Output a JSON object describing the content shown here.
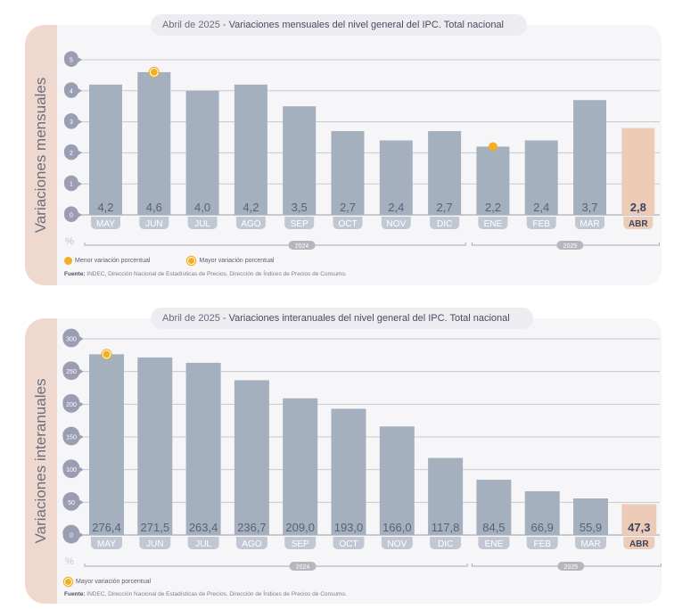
{
  "chart_data": [
    {
      "type": "bar",
      "title_prefix": "Abril de 2025 - ",
      "title": "Variaciones mensuales del nivel general del IPC. Total nacional",
      "ylabel": "Variaciones mensuales",
      "yunit": "%",
      "ylim": [
        0,
        5
      ],
      "yticks": [
        "0",
        "1",
        "2",
        "3",
        "4",
        "5"
      ],
      "categories": [
        "MAY",
        "JUN",
        "JUL",
        "AGO",
        "SEP",
        "OCT",
        "NOV",
        "DIC",
        "ENE",
        "FEB",
        "MAR",
        "ABR"
      ],
      "values": [
        4.2,
        4.6,
        4.0,
        4.2,
        3.5,
        2.7,
        2.4,
        2.7,
        2.2,
        2.4,
        3.7,
        2.8
      ],
      "value_labels": [
        "4,2",
        "4,6",
        "4,0",
        "4,2",
        "3,5",
        "2,7",
        "2,4",
        "2,7",
        "2,2",
        "2,4",
        "3,7",
        "2,8"
      ],
      "highlight_index": 11,
      "markers": [
        {
          "index": 1,
          "kind": "max"
        },
        {
          "index": 8,
          "kind": "min"
        }
      ],
      "year_groups": [
        {
          "label": "2024",
          "from": 0,
          "to": 7
        },
        {
          "label": "2025",
          "from": 8,
          "to": 11
        }
      ],
      "legend": [
        {
          "kind": "min",
          "label": "Menor variación porcentual"
        },
        {
          "kind": "max",
          "label": "Mayor variación porcentual"
        }
      ],
      "source_label": "Fuente:",
      "source_text": " INDEC, Dirección Nacional de Estadísticas de Precios. Dirección de Índices de Precios de Consumo.",
      "grid": true
    },
    {
      "type": "bar",
      "title_prefix": "Abril de 2025 - ",
      "title": "Variaciones interanuales del nivel general del IPC. Total nacional",
      "ylabel": "Variaciones interanuales",
      "yunit": "%",
      "ylim": [
        0,
        300
      ],
      "yticks": [
        "0",
        "50",
        "100",
        "150",
        "200",
        "250",
        "300"
      ],
      "categories": [
        "MAY",
        "JUN",
        "JUL",
        "AGO",
        "SEP",
        "OCT",
        "NOV",
        "DIC",
        "ENE",
        "FEB",
        "MAR",
        "ABR"
      ],
      "values": [
        276.4,
        271.5,
        263.4,
        236.7,
        209.0,
        193.0,
        166.0,
        117.8,
        84.5,
        66.9,
        55.9,
        47.3
      ],
      "value_labels": [
        "276,4",
        "271,5",
        "263,4",
        "236,7",
        "209,0",
        "193,0",
        "166,0",
        "117,8",
        "84,5",
        "66,9",
        "55,9",
        "47,3"
      ],
      "highlight_index": 11,
      "markers": [
        {
          "index": 0,
          "kind": "max"
        }
      ],
      "year_groups": [
        {
          "label": "2024",
          "from": 0,
          "to": 7
        },
        {
          "label": "2025",
          "from": 8,
          "to": 11
        }
      ],
      "legend": [
        {
          "kind": "max",
          "label": "Mayor variación porcentual"
        }
      ],
      "source_label": "Fuente:",
      "source_text": " INDEC, Dirección Nacional de Estadísticas de Precios. Dirección de Índices de Precios de Consumo.",
      "grid": true
    }
  ],
  "colors": {
    "bar": "#a5b0bf",
    "bar_highlight": "#ecccb7",
    "label": "#5b6078",
    "label_highlight": "#3f4360",
    "tick_bubble": "#9b9db3",
    "marker": "#f2ae24",
    "side": "#efd9cf"
  }
}
